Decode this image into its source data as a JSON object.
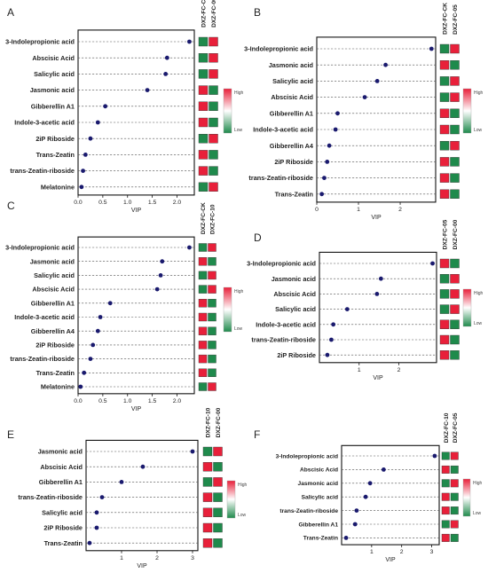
{
  "colors": {
    "dot": "#1a1a6e",
    "high": "#e8203a",
    "low": "#1f8a4c",
    "mid": "#ffffff"
  },
  "legend": {
    "high": "High",
    "low": "Low"
  },
  "chart_data": [
    {
      "type": "scatter",
      "panel": "A",
      "xlabel": "VIP",
      "xlim": [
        0,
        2.35
      ],
      "ticks": [
        0.0,
        0.5,
        1.0,
        1.5,
        2.0
      ],
      "tick_labels": [
        "0.0",
        "0.5",
        "1.0",
        "1.5",
        "2.0"
      ],
      "columns": [
        "DXZ-FC-CK",
        "DXZ-FC-00"
      ],
      "features": [
        "3-Indolepropionic acid",
        "Abscisic Acid",
        "Salicylic acid",
        "Jasmonic acid",
        "Gibberellin A1",
        "Indole-3-acetic acid",
        "2iP Riboside",
        "Trans-Zeatin",
        "trans-Zeatin-riboside",
        "Melatonine"
      ],
      "values": [
        2.25,
        1.8,
        1.77,
        1.4,
        0.55,
        0.4,
        0.25,
        0.15,
        0.1,
        0.07
      ],
      "levels": [
        [
          "low",
          "high"
        ],
        [
          "low",
          "high"
        ],
        [
          "low",
          "high"
        ],
        [
          "high",
          "low"
        ],
        [
          "high",
          "low"
        ],
        [
          "high",
          "low"
        ],
        [
          "low",
          "high"
        ],
        [
          "high",
          "low"
        ],
        [
          "high",
          "low"
        ],
        [
          "low",
          "high"
        ]
      ]
    },
    {
      "type": "scatter",
      "panel": "B",
      "xlabel": "VIP",
      "xlim": [
        0,
        2.85
      ],
      "ticks": [
        0,
        1,
        2
      ],
      "tick_labels": [
        "0",
        "1",
        "2"
      ],
      "columns": [
        "DXZ-FC-CK",
        "DXZ-FC-05"
      ],
      "features": [
        "3-Indolepropionic acid",
        "Jasmonic acid",
        "Salicylic acid",
        "Abscisic Acid",
        "Gibberellin A1",
        "Indole-3-acetic acid",
        "Gibberellin A4",
        "2iP Riboside",
        "trans-Zeatin-riboside",
        "Trans-Zeatin"
      ],
      "values": [
        2.75,
        1.65,
        1.45,
        1.15,
        0.5,
        0.45,
        0.3,
        0.25,
        0.18,
        0.12
      ],
      "levels": [
        [
          "low",
          "high"
        ],
        [
          "high",
          "low"
        ],
        [
          "low",
          "high"
        ],
        [
          "low",
          "high"
        ],
        [
          "high",
          "low"
        ],
        [
          "high",
          "low"
        ],
        [
          "low",
          "high"
        ],
        [
          "high",
          "low"
        ],
        [
          "high",
          "low"
        ],
        [
          "high",
          "low"
        ]
      ]
    },
    {
      "type": "scatter",
      "panel": "C",
      "xlabel": "VIP",
      "xlim": [
        0,
        2.35
      ],
      "ticks": [
        0.0,
        0.5,
        1.0,
        1.5,
        2.0
      ],
      "tick_labels": [
        "0.0",
        "0.5",
        "1.0",
        "1.5",
        "2.0"
      ],
      "columns": [
        "DXZ-FC-CK",
        "DXZ-FC-10"
      ],
      "features": [
        "3-Indolepropionic acid",
        "Jasmonic acid",
        "Salicylic acid",
        "Abscisic Acid",
        "Gibberellin A1",
        "Indole-3-acetic acid",
        "Gibberellin A4",
        "2iP Riboside",
        "trans-Zeatin-riboside",
        "Trans-Zeatin",
        "Melatonine"
      ],
      "values": [
        2.25,
        1.7,
        1.67,
        1.6,
        0.65,
        0.45,
        0.4,
        0.3,
        0.25,
        0.12,
        0.05
      ],
      "levels": [
        [
          "low",
          "high"
        ],
        [
          "high",
          "low"
        ],
        [
          "low",
          "high"
        ],
        [
          "low",
          "high"
        ],
        [
          "high",
          "low"
        ],
        [
          "high",
          "low"
        ],
        [
          "high",
          "low"
        ],
        [
          "high",
          "low"
        ],
        [
          "high",
          "low"
        ],
        [
          "high",
          "low"
        ],
        [
          "low",
          "high"
        ]
      ]
    },
    {
      "type": "scatter",
      "panel": "D",
      "xlabel": "VIP",
      "xlim": [
        0,
        2.95
      ],
      "ticks": [
        1,
        2
      ],
      "tick_labels": [
        "1",
        "2"
      ],
      "columns": [
        "DXZ-FC-05",
        "DXZ-FC-00"
      ],
      "features": [
        "3-Indolepropionic acid",
        "Jasmonic acid",
        "Abscisic Acid",
        "Salicylic acid",
        "Indole-3-acetic acid",
        "trans-Zeatin-riboside",
        "2iP Riboside"
      ],
      "values": [
        2.85,
        1.55,
        1.45,
        0.7,
        0.35,
        0.3,
        0.2
      ],
      "levels": [
        [
          "high",
          "low"
        ],
        [
          "low",
          "high"
        ],
        [
          "low",
          "high"
        ],
        [
          "low",
          "high"
        ],
        [
          "high",
          "low"
        ],
        [
          "high",
          "low"
        ],
        [
          "high",
          "low"
        ]
      ]
    },
    {
      "type": "scatter",
      "panel": "E",
      "xlabel": "VIP",
      "xlim": [
        0,
        3.15
      ],
      "ticks": [
        1,
        2,
        3
      ],
      "tick_labels": [
        "1",
        "2",
        "3"
      ],
      "columns": [
        "DXZ-FC-10",
        "DXZ-FC-00"
      ],
      "features": [
        "Jasmonic acid",
        "Abscisic Acid",
        "Gibberellin A1",
        "trans-Zeatin-riboside",
        "Salicylic acid",
        "2iP Riboside",
        "Trans-Zeatin"
      ],
      "values": [
        3.0,
        1.6,
        1.0,
        0.45,
        0.3,
        0.3,
        0.1
      ],
      "levels": [
        [
          "low",
          "high"
        ],
        [
          "high",
          "low"
        ],
        [
          "low",
          "high"
        ],
        [
          "high",
          "low"
        ],
        [
          "high",
          "low"
        ],
        [
          "high",
          "low"
        ],
        [
          "high",
          "low"
        ]
      ]
    },
    {
      "type": "scatter",
      "panel": "F",
      "xlabel": "VIP",
      "xlim": [
        0,
        3.25
      ],
      "ticks": [
        1,
        2,
        3
      ],
      "tick_labels": [
        "1",
        "2",
        "3"
      ],
      "columns": [
        "DXZ-FC-10",
        "DXZ-FC-05"
      ],
      "features": [
        "3-Indolepropionic acid",
        "Abscisic Acid",
        "Jasmonic acid",
        "Salicylic acid",
        "trans-Zeatin-riboside",
        "Gibberellin A1",
        "Trans-Zeatin"
      ],
      "values": [
        3.1,
        1.4,
        0.95,
        0.8,
        0.5,
        0.45,
        0.15
      ],
      "levels": [
        [
          "low",
          "high"
        ],
        [
          "high",
          "low"
        ],
        [
          "low",
          "high"
        ],
        [
          "high",
          "low"
        ],
        [
          "high",
          "low"
        ],
        [
          "low",
          "high"
        ],
        [
          "high",
          "low"
        ]
      ]
    }
  ]
}
